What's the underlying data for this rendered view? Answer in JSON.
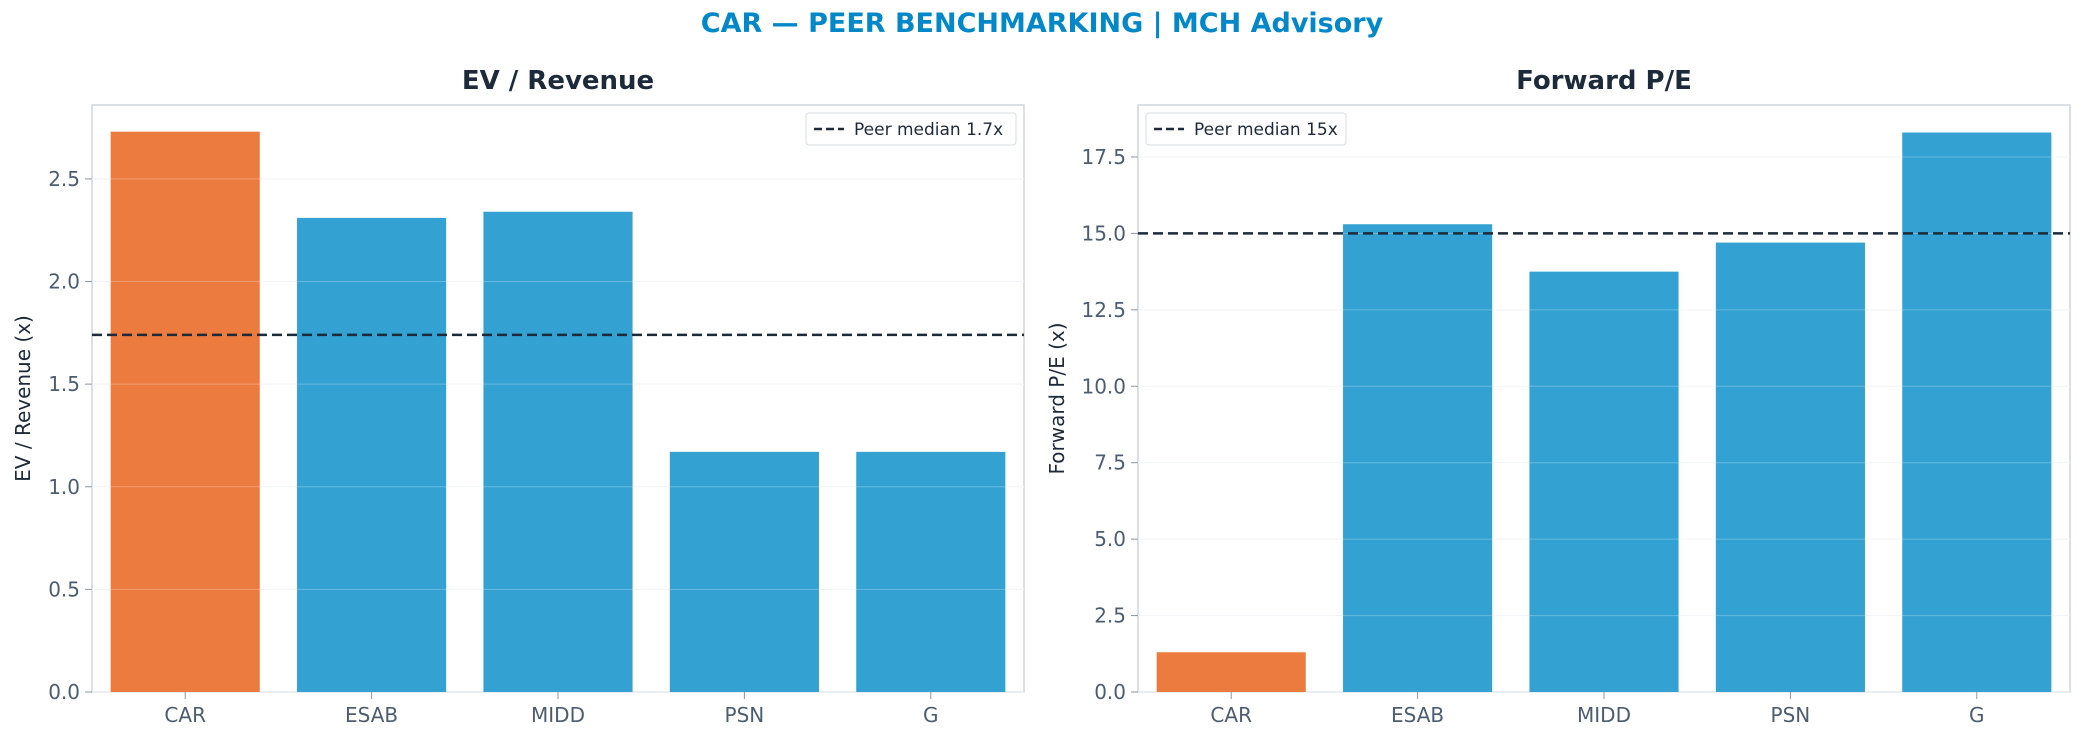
{
  "suptitle": "CAR — PEER BENCHMARKING | MCH Advisory",
  "colors": {
    "highlight": "#ec7b3f",
    "peer": "#33a2d3",
    "median_line": "#1c2a3a",
    "suptitle": "#0288c9"
  },
  "chart_data": [
    {
      "type": "bar",
      "title": "EV / Revenue",
      "xlabel": "",
      "ylabel": "EV / Revenue (x)",
      "categories": [
        "CAR",
        "ESAB",
        "MIDD",
        "PSN",
        "G"
      ],
      "values": [
        2.73,
        2.31,
        2.34,
        1.17,
        1.17
      ],
      "highlight_index": 0,
      "ylim": [
        0,
        2.86
      ],
      "yticks": [
        "0.0",
        "0.5",
        "1.0",
        "1.5",
        "2.0",
        "2.5"
      ],
      "reference_line": {
        "value": 1.74,
        "label": "Peer median 1.7x"
      },
      "legend_position": "top-right",
      "grid": "horizontal"
    },
    {
      "type": "bar",
      "title": "Forward P/E",
      "xlabel": "",
      "ylabel": "Forward P/E (x)",
      "categories": [
        "CAR",
        "ESAB",
        "MIDD",
        "PSN",
        "G"
      ],
      "values": [
        1.3,
        15.3,
        13.75,
        14.7,
        18.3
      ],
      "highlight_index": 0,
      "ylim": [
        0,
        19.2
      ],
      "yticks": [
        "0.0",
        "2.5",
        "5.0",
        "7.5",
        "10.0",
        "12.5",
        "15.0",
        "17.5"
      ],
      "reference_line": {
        "value": 15.0,
        "label": "Peer median 15x"
      },
      "legend_position": "top-left",
      "grid": "horizontal"
    }
  ]
}
